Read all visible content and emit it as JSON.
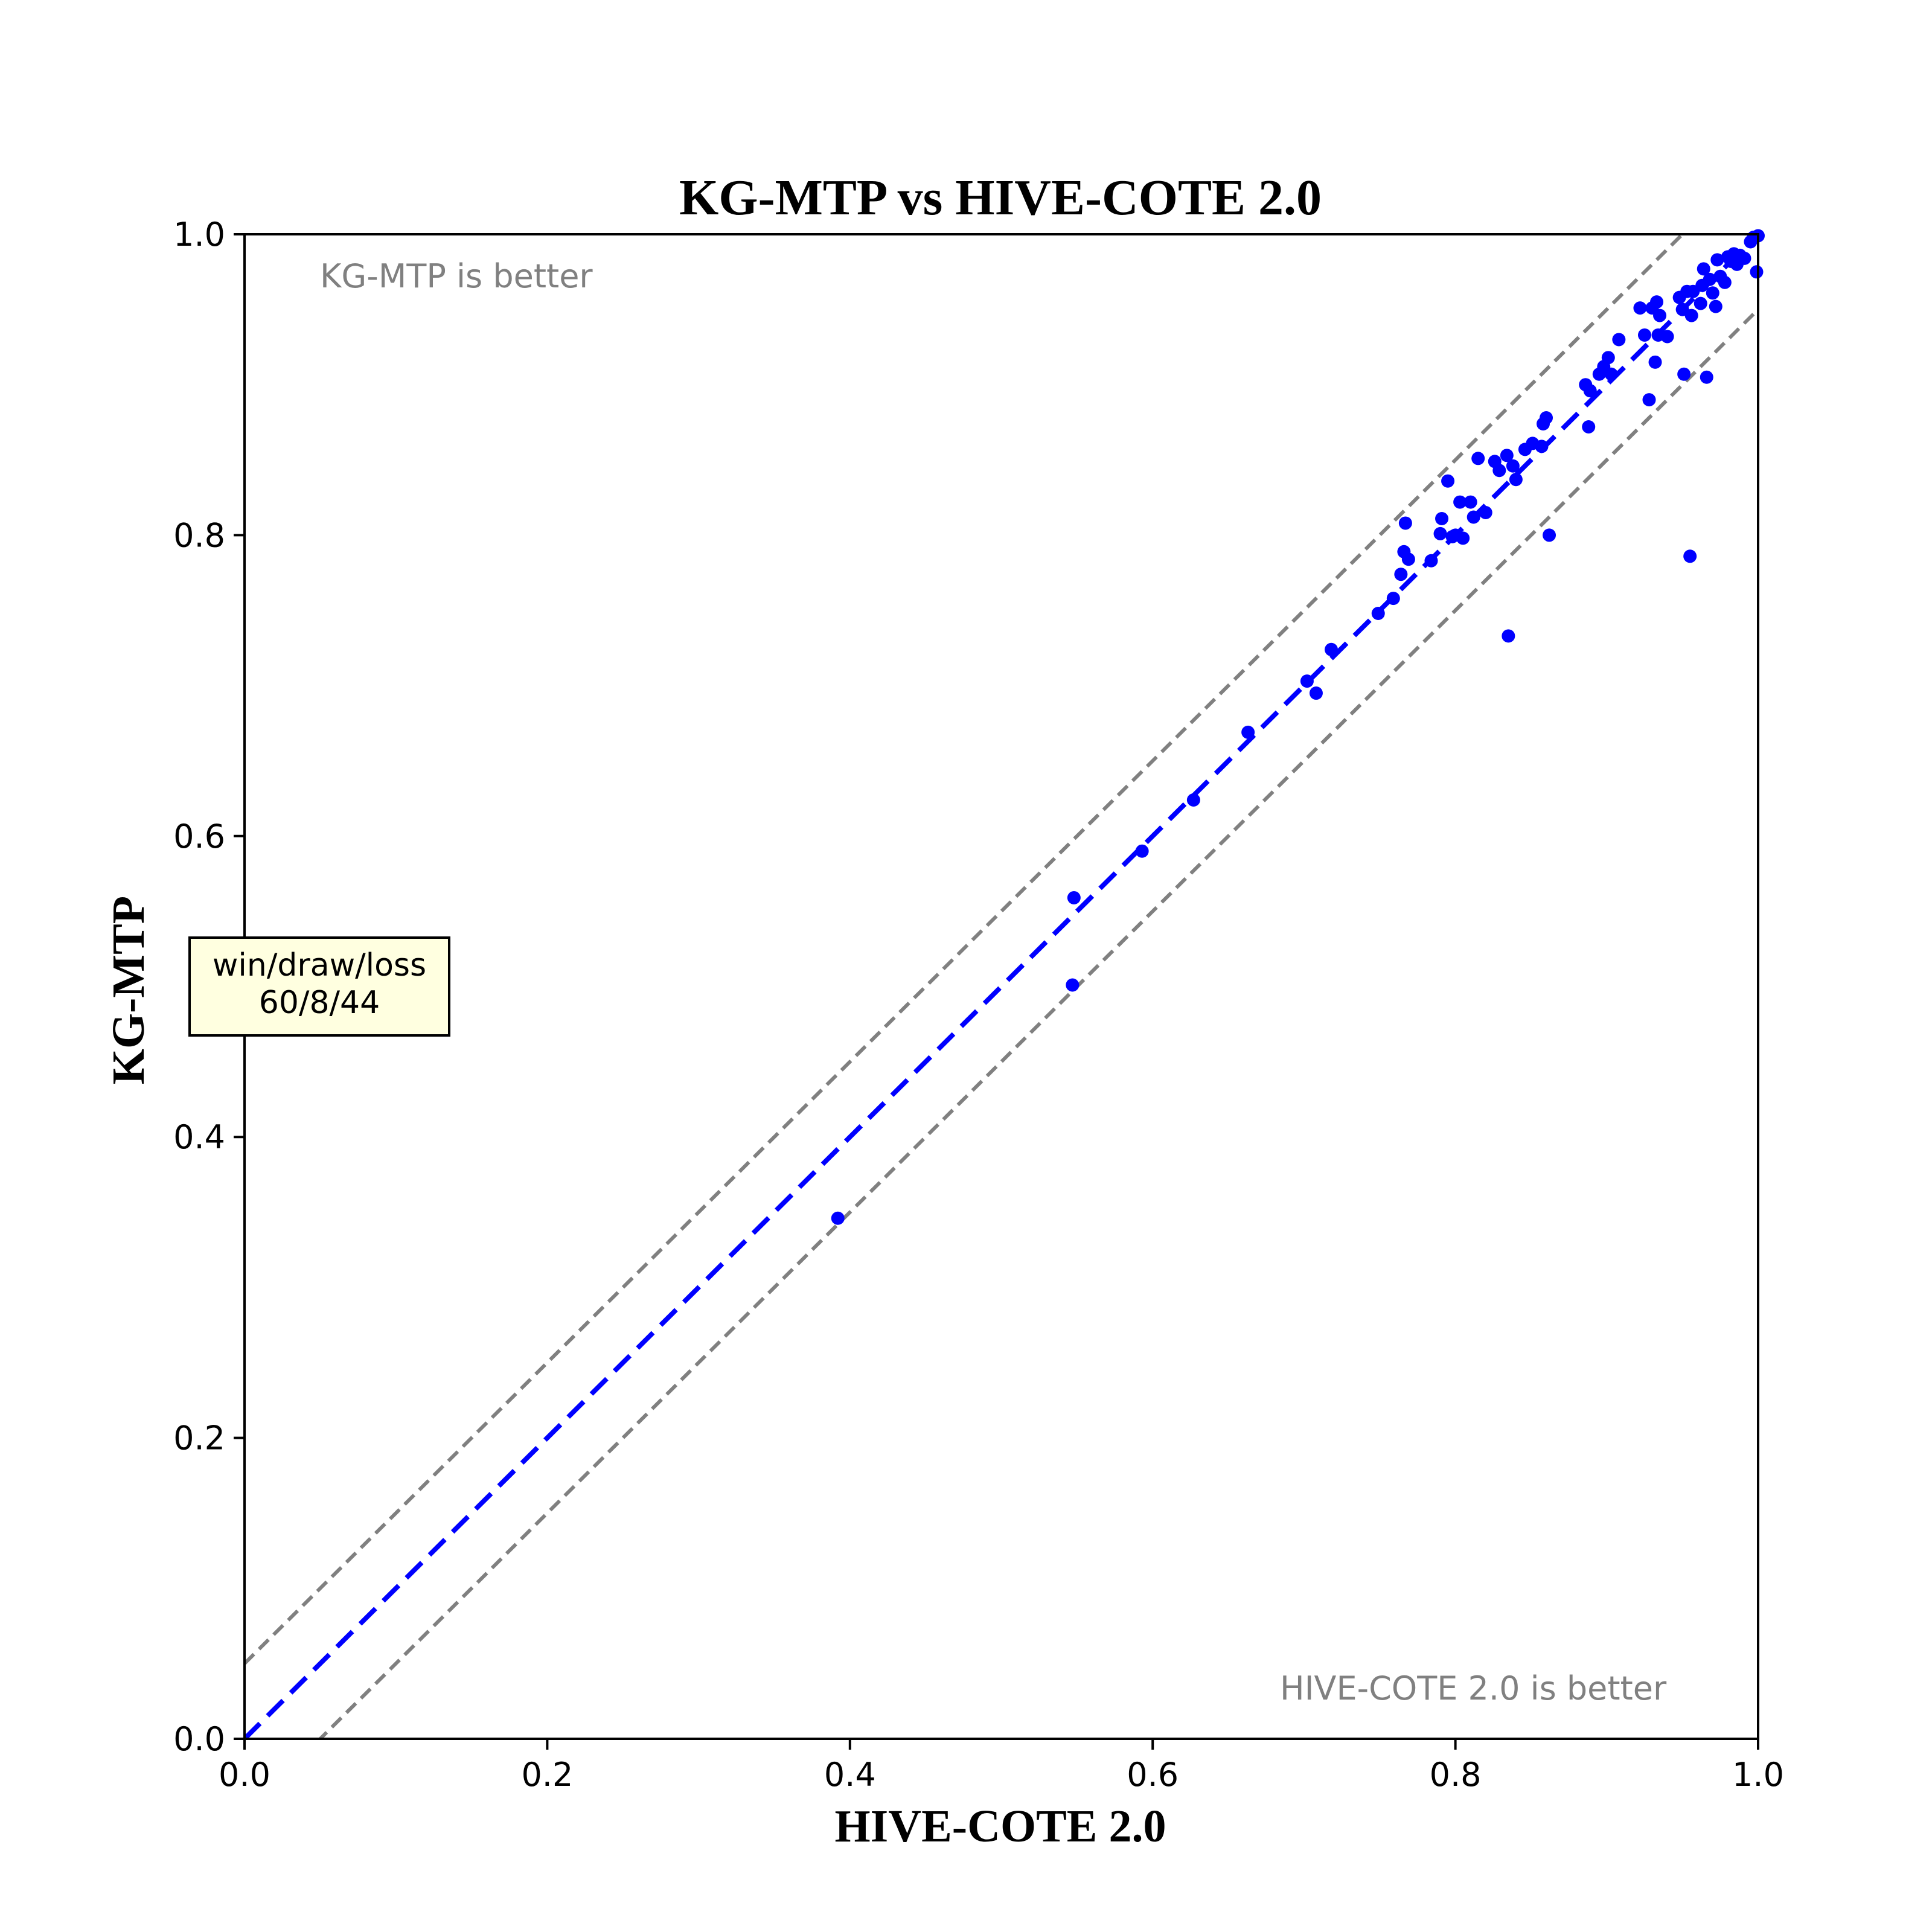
{
  "chart_data": {
    "type": "scatter",
    "title": "KG-MTP vs HIVE-COTE 2.0",
    "xlabel": "HIVE-COTE 2.0",
    "ylabel": "KG-MTP",
    "xlim": [
      0.0,
      1.0
    ],
    "ylim": [
      0.0,
      1.0
    ],
    "xticks": [
      "0.0",
      "0.2",
      "0.4",
      "0.6",
      "0.8",
      "1.0"
    ],
    "yticks": [
      "0.0",
      "0.2",
      "0.4",
      "0.6",
      "0.8",
      "1.0"
    ],
    "grid": false,
    "upper_region_label": "KG-MTP is better",
    "lower_region_label": "HIVE-COTE 2.0 is better",
    "summary_box": {
      "line1": "win/draw/loss",
      "line2": "60/8/44"
    },
    "reference_lines": [
      {
        "kind": "identity",
        "offset": 0.0,
        "color": "#0000ff",
        "style": "dashed"
      },
      {
        "kind": "margin",
        "offset": 0.05,
        "color": "#808080",
        "style": "dashed"
      },
      {
        "kind": "margin",
        "offset": -0.05,
        "color": "#808080",
        "style": "dashed"
      }
    ],
    "point_color": "#0000ff",
    "points": [
      [
        0.392,
        0.346
      ],
      [
        0.547,
        0.501
      ],
      [
        0.548,
        0.559
      ],
      [
        0.593,
        0.59
      ],
      [
        0.627,
        0.624
      ],
      [
        0.663,
        0.669
      ],
      [
        0.702,
        0.703
      ],
      [
        0.708,
        0.695
      ],
      [
        0.718,
        0.724
      ],
      [
        0.749,
        0.748
      ],
      [
        0.759,
        0.758
      ],
      [
        0.764,
        0.774
      ],
      [
        0.766,
        0.789
      ],
      [
        0.767,
        0.808
      ],
      [
        0.769,
        0.784
      ],
      [
        0.784,
        0.783
      ],
      [
        0.79,
        0.801
      ],
      [
        0.791,
        0.811
      ],
      [
        0.795,
        0.836
      ],
      [
        0.798,
        0.799
      ],
      [
        0.8,
        0.8
      ],
      [
        0.803,
        0.822
      ],
      [
        0.805,
        0.798
      ],
      [
        0.81,
        0.822
      ],
      [
        0.812,
        0.812
      ],
      [
        0.815,
        0.851
      ],
      [
        0.82,
        0.815
      ],
      [
        0.826,
        0.849
      ],
      [
        0.829,
        0.843
      ],
      [
        0.834,
        0.853
      ],
      [
        0.835,
        0.733
      ],
      [
        0.838,
        0.846
      ],
      [
        0.84,
        0.837
      ],
      [
        0.846,
        0.857
      ],
      [
        0.851,
        0.861
      ],
      [
        0.857,
        0.859
      ],
      [
        0.858,
        0.874
      ],
      [
        0.86,
        0.878
      ],
      [
        0.862,
        0.8
      ],
      [
        0.886,
        0.9
      ],
      [
        0.888,
        0.872
      ],
      [
        0.889,
        0.896
      ],
      [
        0.895,
        0.907
      ],
      [
        0.898,
        0.912
      ],
      [
        0.901,
        0.918
      ],
      [
        0.903,
        0.907
      ],
      [
        0.908,
        0.93
      ],
      [
        0.922,
        0.951
      ],
      [
        0.925,
        0.933
      ],
      [
        0.928,
        0.89
      ],
      [
        0.93,
        0.951
      ],
      [
        0.932,
        0.915
      ],
      [
        0.933,
        0.955
      ],
      [
        0.934,
        0.933
      ],
      [
        0.935,
        0.946
      ],
      [
        0.94,
        0.932
      ],
      [
        0.948,
        0.958
      ],
      [
        0.95,
        0.95
      ],
      [
        0.951,
        0.907
      ],
      [
        0.953,
        0.962
      ],
      [
        0.955,
        0.786
      ],
      [
        0.956,
        0.946
      ],
      [
        0.957,
        0.962
      ],
      [
        0.962,
        0.954
      ],
      [
        0.963,
        0.966
      ],
      [
        0.964,
        0.977
      ],
      [
        0.966,
        0.905
      ],
      [
        0.968,
        0.97
      ],
      [
        0.97,
        0.961
      ],
      [
        0.972,
        0.952
      ],
      [
        0.973,
        0.983
      ],
      [
        0.975,
        0.972
      ],
      [
        0.978,
        0.968
      ],
      [
        0.98,
        0.985
      ],
      [
        0.982,
        0.982
      ],
      [
        0.984,
        0.987
      ],
      [
        0.986,
        0.98
      ],
      [
        0.988,
        0.986
      ],
      [
        0.991,
        0.984
      ],
      [
        0.995,
        0.995
      ],
      [
        0.997,
        0.998
      ],
      [
        0.999,
        0.975
      ],
      [
        1.0,
        0.999
      ]
    ]
  }
}
